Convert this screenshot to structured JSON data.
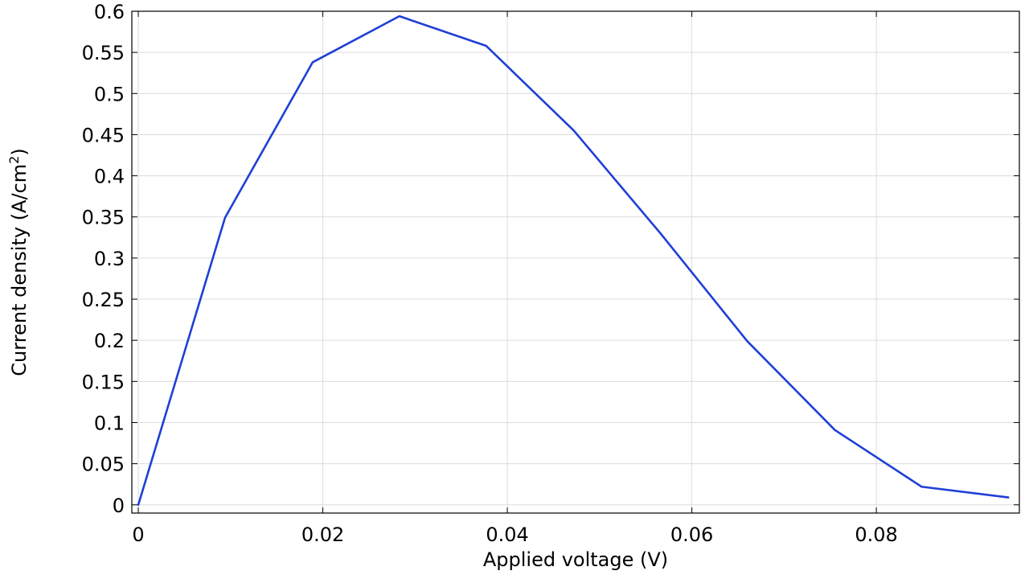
{
  "chart_data": {
    "type": "line",
    "xlabel": "Applied voltage (V)",
    "ylabel": "Current density (A/cm",
    "ylabel_sup": "2",
    "ylabel_close": ")",
    "xlim": [
      -0.0007,
      0.0955
    ],
    "ylim": [
      -0.01,
      0.6
    ],
    "x_ticks": [
      0,
      0.02,
      0.04,
      0.06,
      0.08
    ],
    "x_tick_labels": [
      "0",
      "0.02",
      "0.04",
      "0.06",
      "0.08"
    ],
    "y_ticks": [
      0,
      0.05,
      0.1,
      0.15,
      0.2,
      0.25,
      0.3,
      0.35,
      0.4,
      0.45,
      0.5,
      0.55,
      0.6
    ],
    "y_tick_labels": [
      "0",
      "0.05",
      "0.1",
      "0.15",
      "0.2",
      "0.25",
      "0.3",
      "0.35",
      "0.4",
      "0.45",
      "0.5",
      "0.55",
      "0.6"
    ],
    "grid": true,
    "series": [
      {
        "color": "#1f3fd6",
        "x": [
          0,
          0.0094,
          0.0189,
          0.0283,
          0.0377,
          0.0472,
          0.0566,
          0.066,
          0.0755,
          0.0849,
          0.0943
        ],
        "y": [
          0.0,
          0.349,
          0.538,
          0.594,
          0.558,
          0.455,
          0.33,
          0.199,
          0.091,
          0.022,
          0.009
        ]
      }
    ]
  }
}
